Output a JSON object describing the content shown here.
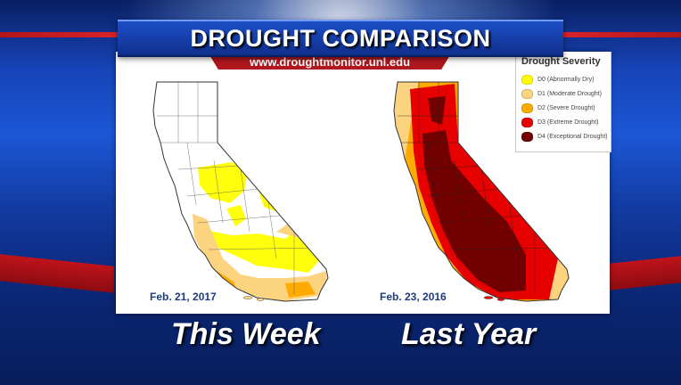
{
  "header": {
    "title": "DROUGHT COMPARISON",
    "url": "www.droughtmonitor.unl.edu"
  },
  "legend": {
    "title": "Drought Severity",
    "items": [
      {
        "label": "D0 (Abnormally Dry)",
        "color": "#ffff00"
      },
      {
        "label": "D1 (Moderate Drought)",
        "color": "#fcd37f"
      },
      {
        "label": "D2 (Severe Drought)",
        "color": "#ffaa00"
      },
      {
        "label": "D3 (Extreme Drought)",
        "color": "#e60000"
      },
      {
        "label": "D4 (Exceptional Drought)",
        "color": "#730000"
      }
    ]
  },
  "maps": [
    {
      "date": "Feb. 21, 2017",
      "caption": "This Week"
    },
    {
      "date": "Feb. 23, 2016",
      "caption": "Last Year"
    }
  ],
  "colors": {
    "accent_red": "#b0171e",
    "title_blue": "#0e2f8c"
  }
}
